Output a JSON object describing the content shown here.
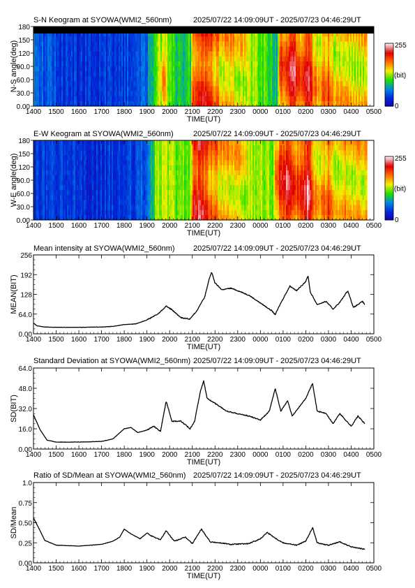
{
  "chart_data": [
    {
      "type": "heatmap",
      "title": "S-N Keogram at SYOWA(WMI2_560nm)",
      "time_range": "2025/07/22 14:09:09UT - 2025/07/23 04:46:29UT",
      "xlabel": "TIME(UT)",
      "ylabel": "N-S angle(deg)",
      "x_ticks": [
        "1400",
        "1500",
        "1600",
        "1700",
        "1800",
        "1900",
        "2000",
        "2100",
        "2200",
        "2300",
        "0000",
        "0100",
        "0200",
        "0300",
        "0400",
        "0500"
      ],
      "y_ticks": [
        "0.00",
        "30.0",
        "60.0",
        "90.0",
        "120",
        "150",
        "180"
      ],
      "ylim": [
        0,
        180
      ],
      "colorbar": {
        "min": "0",
        "max": "255",
        "unit": "(bit)"
      },
      "color_stops": [
        "#1a00a0",
        "#0028d8",
        "#0088e8",
        "#20e000",
        "#f0f000",
        "#ff7000",
        "#e00000",
        "#ffe0e8"
      ],
      "intensity_profile": [
        [
          0,
          0.3
        ],
        [
          0.2,
          0.22
        ],
        [
          1.5,
          0.16
        ],
        [
          3.0,
          0.15
        ],
        [
          4.5,
          0.2
        ],
        [
          5.0,
          0.26
        ],
        [
          5.5,
          0.5
        ],
        [
          5.7,
          0.62
        ],
        [
          6.0,
          0.45
        ],
        [
          6.5,
          0.35
        ],
        [
          6.9,
          0.42
        ],
        [
          7.0,
          0.7
        ],
        [
          7.4,
          0.8
        ],
        [
          7.7,
          0.74
        ],
        [
          8.3,
          0.62
        ],
        [
          9.0,
          0.6
        ],
        [
          9.8,
          0.5
        ],
        [
          10.3,
          0.42
        ],
        [
          10.7,
          0.35
        ],
        [
          10.85,
          0.75
        ],
        [
          11.2,
          0.72
        ],
        [
          11.4,
          0.88
        ],
        [
          11.7,
          0.72
        ],
        [
          12.0,
          0.82
        ],
        [
          12.1,
          0.92
        ],
        [
          12.3,
          0.65
        ],
        [
          12.6,
          0.62
        ],
        [
          13.0,
          0.7
        ],
        [
          13.3,
          0.58
        ],
        [
          13.8,
          0.62
        ],
        [
          14.2,
          0.58
        ],
        [
          14.65,
          0.6
        ]
      ]
    },
    {
      "type": "heatmap",
      "title": "E-W Keogram at SYOWA(WMI2_560nm)",
      "time_range": "2025/07/22 14:09:09UT - 2025/07/23 04:46:29UT",
      "xlabel": "TIME(UT)",
      "ylabel": "W-E angle(deg)",
      "x_ticks": [
        "1400",
        "1500",
        "1600",
        "1700",
        "1800",
        "1900",
        "2000",
        "2100",
        "2200",
        "2300",
        "0000",
        "0100",
        "0200",
        "0300",
        "0400",
        "0500"
      ],
      "y_ticks": [
        "0.00",
        "30.0",
        "60.0",
        "90.0",
        "120",
        "150",
        "180"
      ],
      "ylim": [
        0,
        180
      ],
      "colorbar": {
        "min": "0",
        "max": "255",
        "unit": "(bit)"
      },
      "color_stops": [
        "#1a00a0",
        "#0028d8",
        "#0088e8",
        "#20e000",
        "#f0f000",
        "#ff7000",
        "#e00000",
        "#ffe0e8"
      ],
      "intensity_profile": [
        [
          0,
          0.18
        ],
        [
          1.5,
          0.15
        ],
        [
          3.0,
          0.15
        ],
        [
          4.5,
          0.17
        ],
        [
          5.0,
          0.22
        ],
        [
          5.4,
          0.5
        ],
        [
          5.7,
          0.55
        ],
        [
          6.5,
          0.45
        ],
        [
          6.9,
          0.5
        ],
        [
          7.0,
          0.75
        ],
        [
          7.3,
          0.85
        ],
        [
          7.7,
          0.74
        ],
        [
          8.3,
          0.62
        ],
        [
          9.0,
          0.58
        ],
        [
          9.8,
          0.52
        ],
        [
          10.5,
          0.48
        ],
        [
          10.85,
          0.8
        ],
        [
          11.3,
          0.85
        ],
        [
          11.6,
          0.72
        ],
        [
          12.1,
          0.9
        ],
        [
          12.3,
          0.62
        ],
        [
          12.6,
          0.62
        ],
        [
          13.0,
          0.7
        ],
        [
          13.3,
          0.58
        ],
        [
          13.8,
          0.62
        ],
        [
          14.2,
          0.58
        ],
        [
          14.65,
          0.6
        ]
      ]
    },
    {
      "type": "line",
      "title": "Mean intensity at SYOWA(WMI2_560nm)",
      "time_range": "2025/07/22 14:09:09UT - 2025/07/23 04:46:29UT",
      "xlabel": "TIME(UT)",
      "ylabel": "MEAN(BIT)",
      "x_ticks": [
        "1400",
        "1500",
        "1600",
        "1700",
        "1800",
        "1900",
        "2000",
        "2100",
        "2200",
        "2300",
        "0000",
        "0100",
        "0200",
        "0300",
        "0400",
        "0500"
      ],
      "y_ticks": [
        "0.00",
        "64.0",
        "128",
        "192",
        "256"
      ],
      "ylim": [
        0,
        256
      ],
      "series": [
        {
          "values": [
            [
              0,
              35
            ],
            [
              0.15,
              26
            ],
            [
              0.5,
              22
            ],
            [
              1,
              21
            ],
            [
              2,
              21
            ],
            [
              3,
              22
            ],
            [
              3.5,
              24
            ],
            [
              4,
              30
            ],
            [
              4.5,
              32
            ],
            [
              5,
              45
            ],
            [
              5.5,
              65
            ],
            [
              5.85,
              90
            ],
            [
              6.1,
              78
            ],
            [
              6.5,
              52
            ],
            [
              6.9,
              48
            ],
            [
              7.2,
              75
            ],
            [
              7.55,
              120
            ],
            [
              7.75,
              180
            ],
            [
              7.85,
              200
            ],
            [
              8.0,
              165
            ],
            [
              8.3,
              143
            ],
            [
              8.7,
              148
            ],
            [
              9,
              140
            ],
            [
              9.5,
              125
            ],
            [
              10,
              100
            ],
            [
              10.5,
              75
            ],
            [
              10.65,
              62
            ],
            [
              10.9,
              100
            ],
            [
              11.3,
              155
            ],
            [
              11.6,
              140
            ],
            [
              12.0,
              170
            ],
            [
              12.1,
              188
            ],
            [
              12.2,
              135
            ],
            [
              12.5,
              95
            ],
            [
              12.9,
              105
            ],
            [
              13.2,
              80
            ],
            [
              13.5,
              102
            ],
            [
              13.85,
              140
            ],
            [
              14.1,
              85
            ],
            [
              14.5,
              105
            ],
            [
              14.6,
              95
            ]
          ]
        }
      ]
    },
    {
      "type": "line",
      "title": "Standard Deviation at SYOWA(WMI2_560nm)",
      "time_range": "2025/07/22 14:09:09UT - 2025/07/23 04:46:29UT",
      "xlabel": "TIME(UT)",
      "ylabel": "SD(BIT)",
      "x_ticks": [
        "1400",
        "1500",
        "1600",
        "1700",
        "1800",
        "1900",
        "2000",
        "2100",
        "2200",
        "2300",
        "0000",
        "0100",
        "0200",
        "0300",
        "0400",
        "0500"
      ],
      "y_ticks": [
        "0.00",
        "16.0",
        "32.0",
        "48.0",
        "64.0"
      ],
      "ylim": [
        0,
        64
      ],
      "series": [
        {
          "values": [
            [
              0,
              27
            ],
            [
              0.3,
              15
            ],
            [
              0.6,
              7
            ],
            [
              1,
              5.5
            ],
            [
              2,
              5.5
            ],
            [
              3,
              6
            ],
            [
              3.5,
              8
            ],
            [
              4,
              16
            ],
            [
              4.3,
              17
            ],
            [
              4.6,
              13
            ],
            [
              5,
              15
            ],
            [
              5.3,
              18
            ],
            [
              5.6,
              14
            ],
            [
              5.85,
              38
            ],
            [
              6.1,
              22
            ],
            [
              6.5,
              22
            ],
            [
              6.9,
              16
            ],
            [
              7.1,
              22
            ],
            [
              7.35,
              45
            ],
            [
              7.5,
              54
            ],
            [
              7.65,
              40
            ],
            [
              8.1,
              35
            ],
            [
              8.5,
              30
            ],
            [
              9,
              28
            ],
            [
              9.5,
              26
            ],
            [
              10,
              23
            ],
            [
              10.4,
              30
            ],
            [
              10.65,
              48
            ],
            [
              10.9,
              30
            ],
            [
              11.2,
              38
            ],
            [
              11.4,
              26
            ],
            [
              12,
              40
            ],
            [
              12.3,
              52
            ],
            [
              12.5,
              30
            ],
            [
              12.9,
              28
            ],
            [
              13.2,
              20
            ],
            [
              13.5,
              28
            ],
            [
              14.0,
              18
            ],
            [
              14.3,
              26
            ],
            [
              14.6,
              20
            ]
          ]
        }
      ]
    },
    {
      "type": "line",
      "title": "Ratio of SD/Mean at SYOWA(WMI2_560nm)",
      "time_range": "2025/07/22 14:09:09UT - 2025/07/23 04:46:29UT",
      "xlabel": "TIME(UT)",
      "ylabel": "SD/Mean",
      "x_ticks": [
        "1400",
        "1500",
        "1600",
        "1700",
        "1800",
        "1900",
        "2000",
        "2100",
        "2200",
        "2300",
        "0000",
        "0100",
        "0200",
        "0300",
        "0400",
        "0500"
      ],
      "y_ticks": [
        "0.00",
        "0.25",
        "0.50",
        "0.75",
        "1.0"
      ],
      "ylim": [
        0,
        1.0
      ],
      "series": [
        {
          "values": [
            [
              0,
              0.56
            ],
            [
              0.2,
              0.45
            ],
            [
              0.5,
              0.28
            ],
            [
              1,
              0.22
            ],
            [
              2,
              0.21
            ],
            [
              3,
              0.23
            ],
            [
              3.5,
              0.27
            ],
            [
              3.8,
              0.32
            ],
            [
              4,
              0.42
            ],
            [
              4.3,
              0.36
            ],
            [
              4.7,
              0.3
            ],
            [
              5.0,
              0.37
            ],
            [
              5.3,
              0.32
            ],
            [
              5.6,
              0.29
            ],
            [
              5.85,
              0.4
            ],
            [
              6.2,
              0.27
            ],
            [
              6.7,
              0.32
            ],
            [
              7.0,
              0.24
            ],
            [
              7.4,
              0.42
            ],
            [
              7.8,
              0.26
            ],
            [
              8.2,
              0.25
            ],
            [
              8.7,
              0.23
            ],
            [
              9.5,
              0.24
            ],
            [
              10,
              0.3
            ],
            [
              10.3,
              0.38
            ],
            [
              10.7,
              0.3
            ],
            [
              11,
              0.25
            ],
            [
              11.6,
              0.22
            ],
            [
              12.0,
              0.27
            ],
            [
              12.3,
              0.44
            ],
            [
              12.5,
              0.25
            ],
            [
              13.0,
              0.22
            ],
            [
              13.5,
              0.26
            ],
            [
              14.0,
              0.2
            ],
            [
              14.6,
              0.17
            ]
          ]
        }
      ]
    }
  ]
}
